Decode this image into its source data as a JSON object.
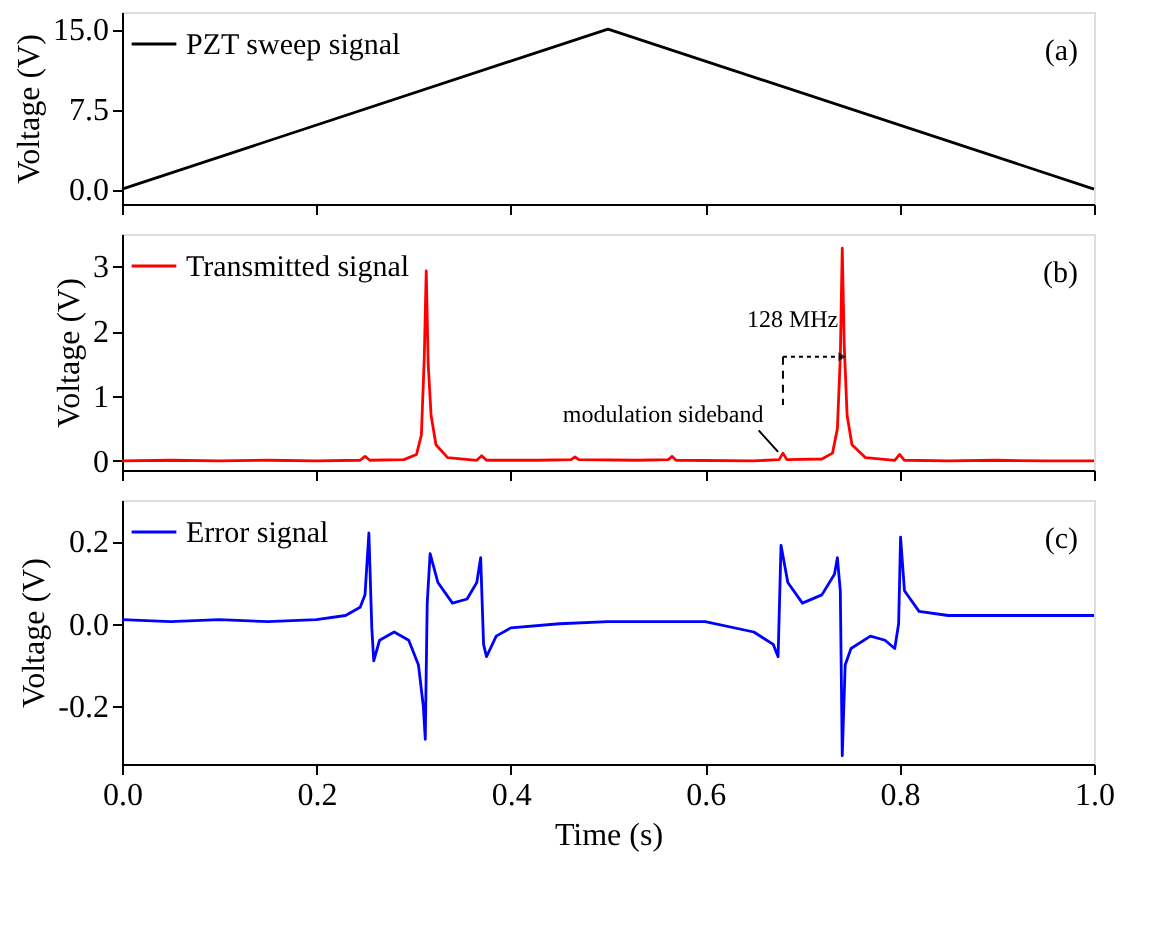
{
  "chart_data": [
    {
      "type": "line",
      "ylabel": "Voltage (V)",
      "xlim": [
        0,
        1
      ],
      "ylim": [
        -1.4,
        16.6
      ],
      "yticks": [
        {
          "value": 0,
          "label": "0.0"
        },
        {
          "value": 7.5,
          "label": "7.5"
        },
        {
          "value": 15,
          "label": "15.0"
        }
      ],
      "xticks": [
        {
          "value": 0,
          "label": null
        },
        {
          "value": 0.2,
          "label": null
        },
        {
          "value": 0.4,
          "label": null
        },
        {
          "value": 0.6,
          "label": null
        },
        {
          "value": 0.8,
          "label": null
        },
        {
          "value": 1,
          "label": null
        }
      ],
      "tick_labels": "y",
      "grid": false,
      "legend": "top left",
      "annotations": [
        "(a)"
      ],
      "series": [
        {
          "name": "PZT sweep signal",
          "color": "#000000",
          "x": [
            0,
            0.5,
            1
          ],
          "values": [
            0,
            15,
            0
          ]
        }
      ]
    },
    {
      "type": "line",
      "ylabel": "Voltage (V)",
      "xlim": [
        0,
        1
      ],
      "ylim": [
        -0.14,
        3.5
      ],
      "yticks": [
        0,
        1,
        2,
        3
      ],
      "xticks": [
        {
          "value": 0,
          "label": null
        },
        {
          "value": 0.2,
          "label": null
        },
        {
          "value": 0.4,
          "label": null
        },
        {
          "value": 0.6,
          "label": null
        },
        {
          "value": 0.8,
          "label": null
        },
        {
          "value": 1,
          "label": null
        }
      ],
      "tick_labels": "y",
      "grid": false,
      "legend": "top left",
      "annotations": [
        "(b)",
        "128 MHz",
        {
          "text": "modulation sideband",
          "x": 0.68,
          "y": 0.12
        }
      ],
      "series": [
        {
          "name": "Transmitted signal",
          "color": "#ff0000",
          "x": [
            0,
            0.05,
            0.1,
            0.15,
            0.2,
            0.245,
            0.25,
            0.255,
            0.29,
            0.303,
            0.308,
            0.311,
            0.313,
            0.315,
            0.318,
            0.323,
            0.335,
            0.365,
            0.37,
            0.375,
            0.43,
            0.462,
            0.466,
            0.47,
            0.53,
            0.562,
            0.566,
            0.57,
            0.65,
            0.676,
            0.68,
            0.684,
            0.72,
            0.731,
            0.736,
            0.739,
            0.741,
            0.743,
            0.746,
            0.751,
            0.765,
            0.795,
            0.8,
            0.805,
            0.85,
            0.9,
            0.95,
            1.0
          ],
          "values": [
            0.0,
            0.01,
            0.0,
            0.01,
            0.0,
            0.01,
            0.07,
            0.01,
            0.02,
            0.1,
            0.4,
            1.6,
            2.93,
            1.5,
            0.7,
            0.25,
            0.05,
            0.01,
            0.08,
            0.01,
            0.01,
            0.02,
            0.06,
            0.02,
            0.01,
            0.02,
            0.07,
            0.01,
            0.0,
            0.02,
            0.12,
            0.02,
            0.03,
            0.12,
            0.5,
            1.6,
            3.28,
            1.8,
            0.7,
            0.25,
            0.05,
            0.01,
            0.1,
            0.01,
            0.0,
            0.01,
            0.0,
            0.0
          ]
        }
      ]
    },
    {
      "type": "line",
      "ylabel": "Voltage (V)",
      "xlabel": "Time (s)",
      "xlim": [
        0,
        1
      ],
      "ylim": [
        -0.34,
        0.3
      ],
      "yticks": [
        -0.2,
        {
          "value": 0,
          "label": "0.0"
        },
        0.2
      ],
      "xticks": [
        {
          "value": 0,
          "label": "0.0"
        },
        0.2,
        0.4,
        0.6,
        0.8,
        {
          "value": 1,
          "label": "1.0"
        }
      ],
      "grid": false,
      "legend": "top left",
      "annotations": [
        "(c)"
      ],
      "series": [
        {
          "name": "Error signal",
          "color": "#0000ff",
          "x": [
            0,
            0.05,
            0.1,
            0.15,
            0.2,
            0.23,
            0.245,
            0.25,
            0.254,
            0.257,
            0.259,
            0.265,
            0.28,
            0.295,
            0.305,
            0.31,
            0.312,
            0.314,
            0.317,
            0.325,
            0.34,
            0.355,
            0.365,
            0.369,
            0.372,
            0.375,
            0.385,
            0.4,
            0.45,
            0.5,
            0.55,
            0.6,
            0.65,
            0.67,
            0.675,
            0.678,
            0.685,
            0.7,
            0.72,
            0.733,
            0.736,
            0.739,
            0.741,
            0.744,
            0.75,
            0.77,
            0.785,
            0.795,
            0.799,
            0.801,
            0.805,
            0.82,
            0.85,
            0.9,
            0.95,
            1.0
          ],
          "values": [
            0.01,
            0.005,
            0.01,
            0.005,
            0.01,
            0.02,
            0.04,
            0.07,
            0.22,
            -0.01,
            -0.09,
            -0.04,
            -0.02,
            -0.04,
            -0.1,
            -0.2,
            -0.28,
            0.05,
            0.17,
            0.1,
            0.05,
            0.06,
            0.1,
            0.16,
            -0.05,
            -0.08,
            -0.03,
            -0.01,
            0.0,
            0.005,
            0.005,
            0.005,
            -0.02,
            -0.05,
            -0.08,
            0.19,
            0.1,
            0.05,
            0.07,
            0.12,
            0.16,
            0.08,
            -0.32,
            -0.1,
            -0.06,
            -0.03,
            -0.04,
            -0.06,
            0.0,
            0.21,
            0.08,
            0.03,
            0.02,
            0.02,
            0.02,
            0.02
          ]
        }
      ]
    }
  ]
}
